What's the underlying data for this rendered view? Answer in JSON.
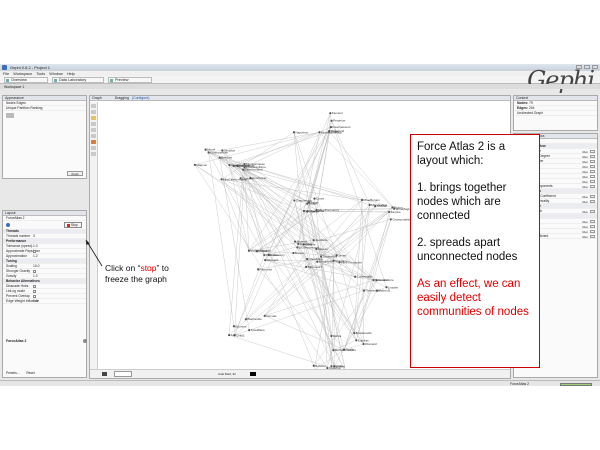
{
  "window": {
    "title": "Gephi 0.8.2 - Project 1",
    "menu": [
      "File",
      "Workspace",
      "Tools",
      "Window",
      "Help"
    ],
    "tabs": [
      "Overview",
      "Data Laboratory",
      "Preview"
    ],
    "workspace": "Workspace 1",
    "logo": "Gephi"
  },
  "appearance": {
    "title": "Appearance",
    "subtabs": [
      "Nodes",
      "Edges"
    ],
    "modes": [
      "Unique",
      "Partition",
      "Ranking"
    ],
    "apply_label": "Apply"
  },
  "layout": {
    "title": "Layout",
    "algorithm": "ForceAtlas 2",
    "stop_label": "Stop",
    "sections": [
      {
        "name": "Threads",
        "rows": [
          {
            "label": "Threads number",
            "value": "3"
          }
        ]
      },
      {
        "name": "Performance",
        "rows": [
          {
            "label": "Tolerance (speed)",
            "value": "1.0"
          },
          {
            "label": "Approximate Repulsion",
            "value": ""
          },
          {
            "label": "Approximation",
            "value": "1.2"
          }
        ]
      },
      {
        "name": "Tuning",
        "rows": [
          {
            "label": "Scaling",
            "value": "10.0"
          },
          {
            "label": "Stronger Gravity",
            "value": ""
          },
          {
            "label": "Gravity",
            "value": "1.0"
          }
        ]
      },
      {
        "name": "Behavior Alternatives",
        "rows": [
          {
            "label": "Dissuade Hubs",
            "value": ""
          },
          {
            "label": "LinLog mode",
            "value": ""
          },
          {
            "label": "Prevent Overlap",
            "value": ""
          },
          {
            "label": "Edge Weight Influence",
            "value": "1.0"
          }
        ]
      }
    ],
    "footer": "ForceAtlas 2",
    "presets": "Presets...",
    "reset": "Reset"
  },
  "graph": {
    "title": "Graph",
    "mode": "Dragging",
    "config": "(Configure)",
    "font": "Arial Bold, 32"
  },
  "context": {
    "title": "Context",
    "nodes_label": "Nodes:",
    "nodes": "79",
    "edges_label": "Edges:",
    "edges": "254",
    "graph_type": "Undirected Graph"
  },
  "statistics": {
    "title": "Statistics",
    "settings": "Settings",
    "run_label": "Run",
    "groups": [
      {
        "name": "Network Overview",
        "items": [
          "Average Degree",
          "Avg. Weighted Degree",
          "Network Diameter",
          "Graph Density",
          "HITS",
          "Modularity",
          "PageRank",
          "Connected Components"
        ]
      },
      {
        "name": "Node Overview",
        "items": [
          "Avg. Clustering Coefficient",
          "Eigenvector Centrality"
        ]
      },
      {
        "name": "Edge Overview",
        "items": [
          "Avg. Path Length"
        ]
      },
      {
        "name": "Dynamic",
        "items": [
          "# Nodes",
          "# Edges",
          "Degree",
          "Clustering Coefficient"
        ]
      }
    ]
  },
  "status": {
    "left": "ForceAtlas 2"
  },
  "note": {
    "pre": "Click on “",
    "stop": "stop",
    "post": "” to freeze the graph"
  },
  "callout": {
    "intro": "Force Atlas 2 is a layout which:",
    "point1": "1. brings together nodes which are connected",
    "point2": "2. spreads apart unconnected nodes",
    "effect": "As an effect, we can easily detect communities of nodes"
  },
  "node_labels": [
    "Napoleon",
    "Myriel",
    "Gillenormand",
    "Cosette",
    "Fantine",
    "Valjean",
    "Javert",
    "Thenardier",
    "Marius",
    "Enjolras",
    "Gavroche",
    "Eponine",
    "Fauchelevent",
    "Bossuet",
    "Courfeyrac",
    "Babet",
    "Brujon",
    "Mabeuf",
    "Tholomyes",
    "Listolier",
    "Favourite",
    "Dahlia",
    "Zephine",
    "Blacheville",
    "Fameuil",
    "Champtercier",
    "Cravatte",
    "Count",
    "OldMan",
    "Labarre",
    "Marguerite",
    "Toussaint",
    "Woman1",
    "Woman2",
    "Gribier",
    "Scaufflaire",
    "Perpetue",
    "Simplice",
    "Bamatabois",
    "Judge",
    "Champmathieu",
    "Brevet",
    "Chenildieu",
    "Cochepaille",
    "Pontmercy",
    "Boulatruelle",
    "Anzelma",
    "Child1",
    "Child2",
    "Gueulemer",
    "Montparnasse",
    "Claquesous",
    "MmeBurgon",
    "Jondrette",
    "Grantaire",
    "Combeferre",
    "Prouvaire",
    "Feuilly",
    "Bahorel",
    "Joly",
    "MmeHucheloup",
    "Magnon",
    "MlleGillenormand",
    "MmePontmercy",
    "MlleVaubois",
    "LtGillenormand",
    "BaronessT",
    "Mabeuf2",
    "MotherPlutarch",
    "MotherInnocent",
    "Isabeau",
    "Gervais",
    "Geborand",
    "Napoleon2",
    "CountessDeLo",
    "MlleBaptistine",
    "MmeMagloire",
    "MmeDeR",
    "MmeThenardier"
  ]
}
